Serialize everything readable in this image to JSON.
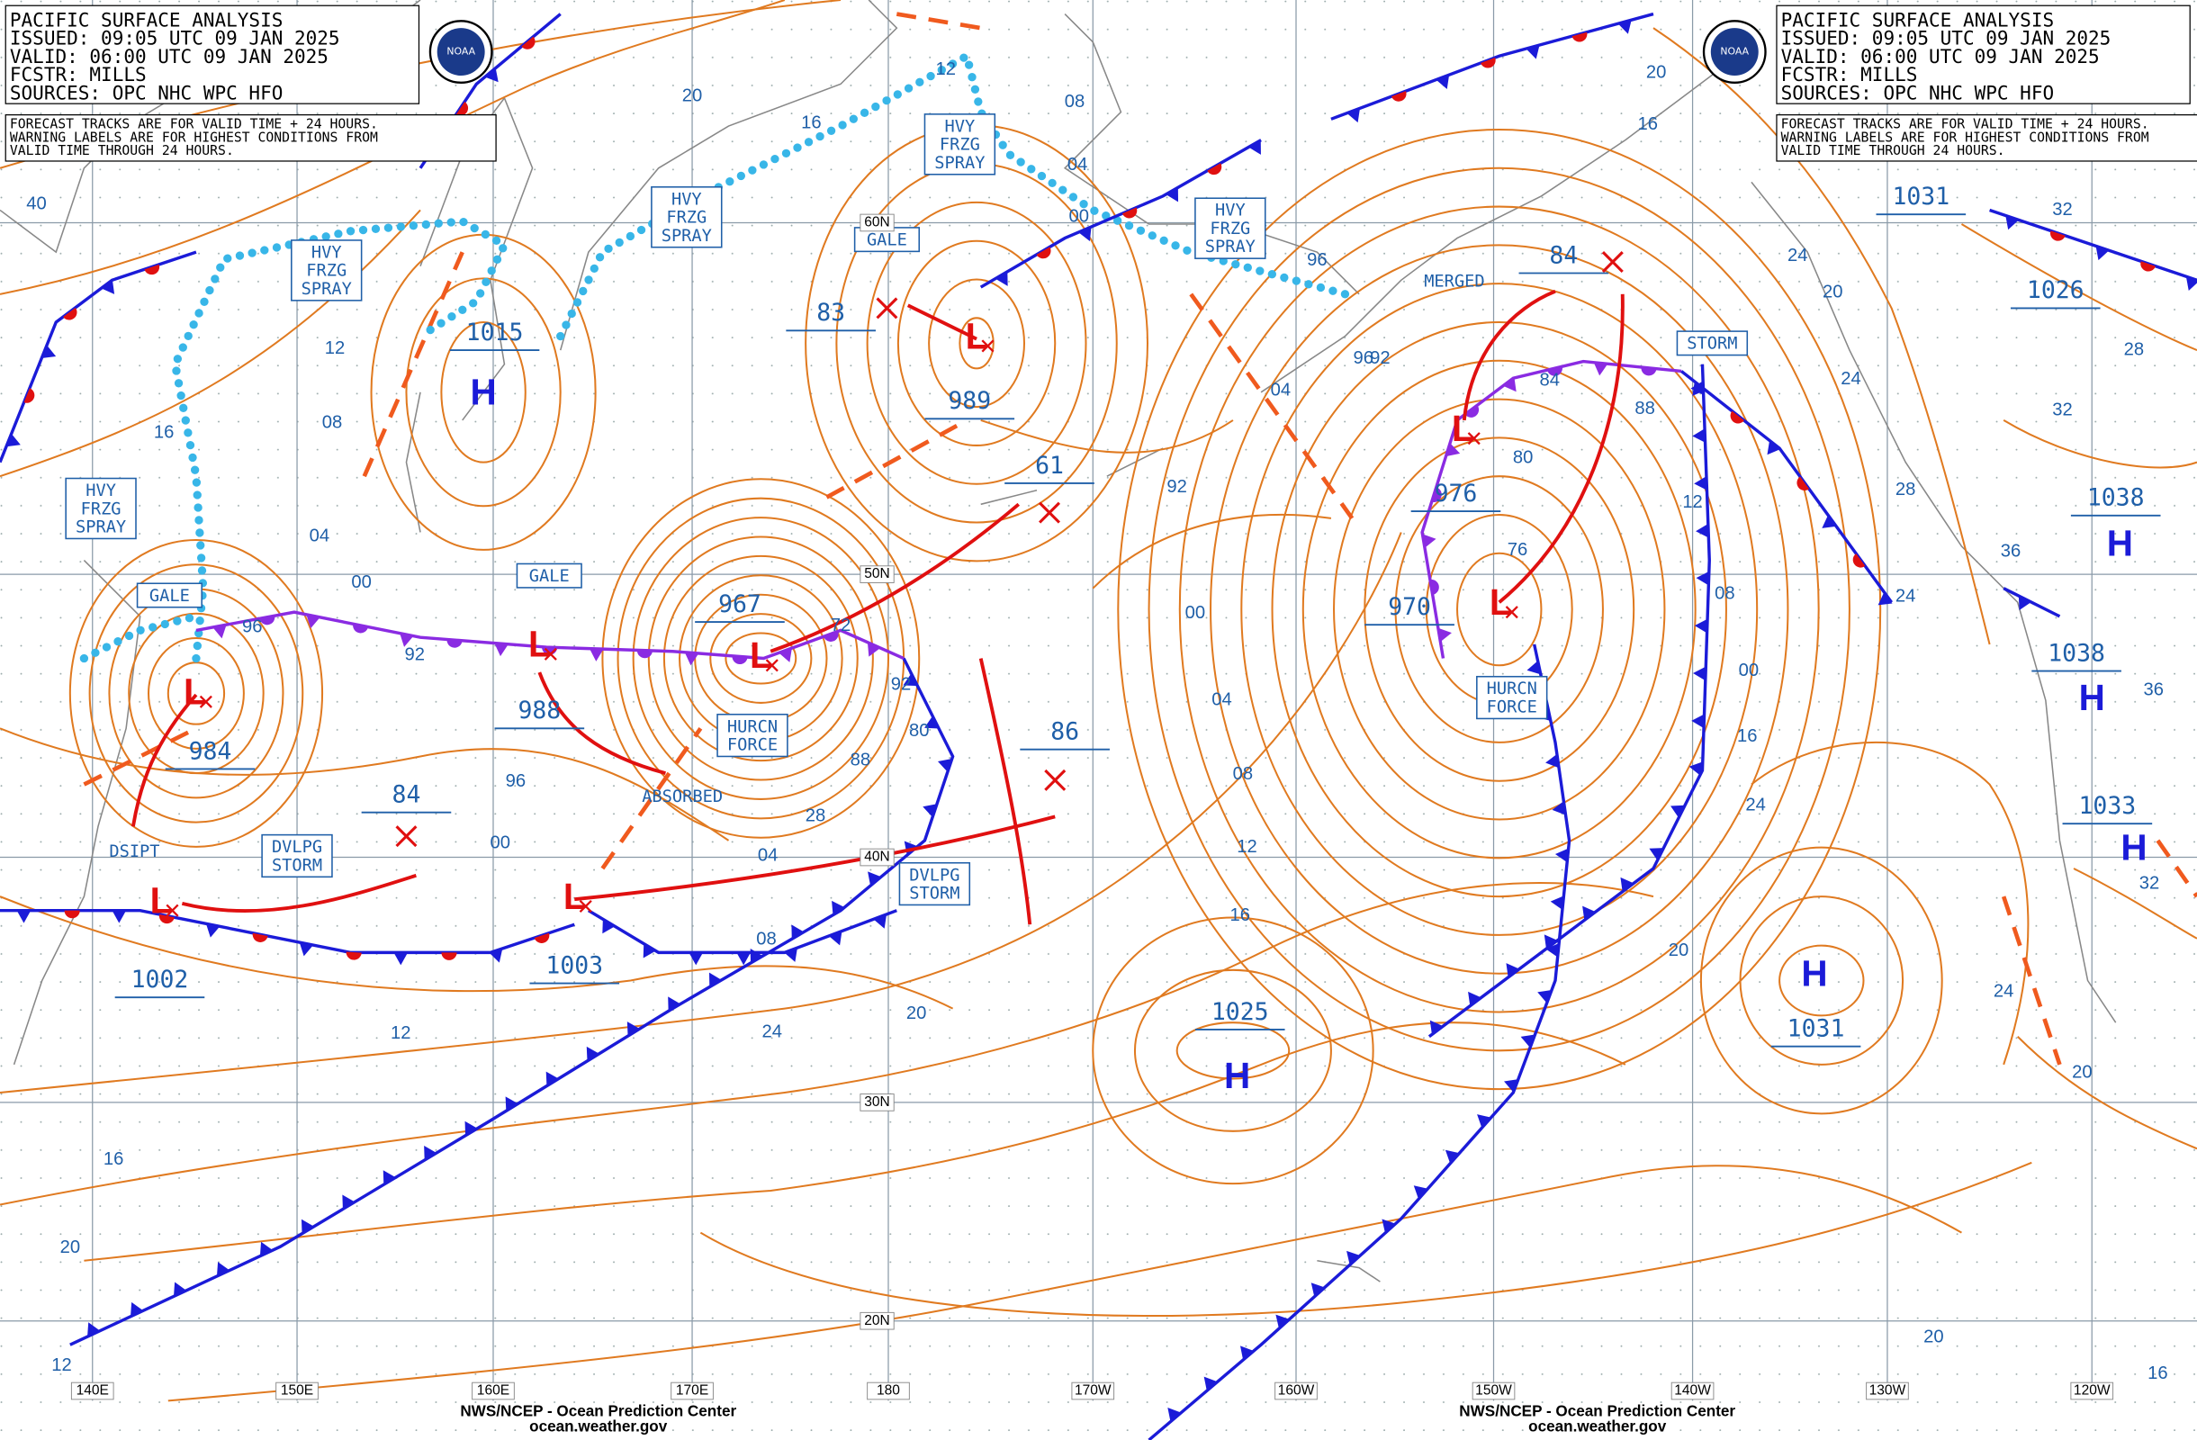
{
  "header": {
    "title": "PACIFIC SURFACE ANALYSIS",
    "issued": "ISSUED: 09:05 UTC 09 JAN 2025",
    "valid": "VALID: 06:00 UTC 09 JAN 2025",
    "forecaster": "FCSTR: MILLS",
    "sources": "SOURCES: OPC NHC WPC HFO",
    "logo": "NOAA"
  },
  "note": [
    "FORECAST TRACKS ARE FOR VALID TIME + 24 HOURS.",
    "WARNING LABELS ARE FOR HIGHEST CONDITIONS FROM",
    "VALID TIME THROUGH 24 HOURS."
  ],
  "warnings": [
    [
      "HVY",
      "FRZG",
      "SPRAY"
    ],
    [
      "HVY",
      "FRZG",
      "SPRAY"
    ],
    [
      "HVY",
      "FRZG",
      "SPRAY"
    ],
    [
      "HVY",
      "FRZG",
      "SPRAY"
    ],
    [
      "HVY",
      "FRZG",
      "SPRAY"
    ],
    [
      "GALE"
    ],
    [
      "GALE"
    ],
    [
      "GALE"
    ],
    [
      "STORM"
    ],
    [
      "HURCN",
      "FORCE"
    ],
    [
      "HURCN",
      "FORCE"
    ],
    [
      "DVLPG",
      "STORM"
    ],
    [
      "DVLPG",
      "STORM"
    ]
  ],
  "annotations": [
    "MERGED",
    "ABSORBED",
    "DSIPT"
  ],
  "pressure_labels": [
    "1015",
    "83",
    "989",
    "61",
    "967",
    "988",
    "984",
    "84",
    "86",
    "1003",
    "1002",
    "1025",
    "976",
    "970",
    "84",
    "1031",
    "1026",
    "1038",
    "1038",
    "1033",
    "1031"
  ],
  "highs": [
    "H",
    "H",
    "H",
    "H",
    "H",
    "H"
  ],
  "lows": [
    "L",
    "L",
    "L",
    "L",
    "L",
    "L",
    "L",
    "L"
  ],
  "isobar_labels": [
    "20",
    "16",
    "12",
    "08",
    "04",
    "00",
    "96",
    "92",
    "88",
    "84",
    "80",
    "76",
    "72",
    "24",
    "28",
    "32",
    "36",
    "40",
    "16",
    "12",
    "08",
    "04",
    "00",
    "96",
    "92",
    "96",
    "00",
    "04",
    "08",
    "12",
    "16",
    "20",
    "24",
    "20",
    "16",
    "12",
    "08",
    "04",
    "00",
    "96",
    "92",
    "80",
    "88",
    "92",
    "00",
    "04",
    "08",
    "12",
    "16",
    "20",
    "24",
    "28",
    "32",
    "24",
    "20",
    "16",
    "20",
    "24",
    "28",
    "36",
    "32",
    "20",
    "16",
    "12",
    "24",
    "20"
  ],
  "latitudes": [
    "60N",
    "50N",
    "40N",
    "30N",
    "20N"
  ],
  "longitudes": [
    "140E",
    "150E",
    "160E",
    "170E",
    "180",
    "170W",
    "160W",
    "150W",
    "140W",
    "130W",
    "120W"
  ],
  "footer": {
    "agency": "NWS/NCEP - Ocean Prediction Center",
    "url": "ocean.weather.gov"
  }
}
